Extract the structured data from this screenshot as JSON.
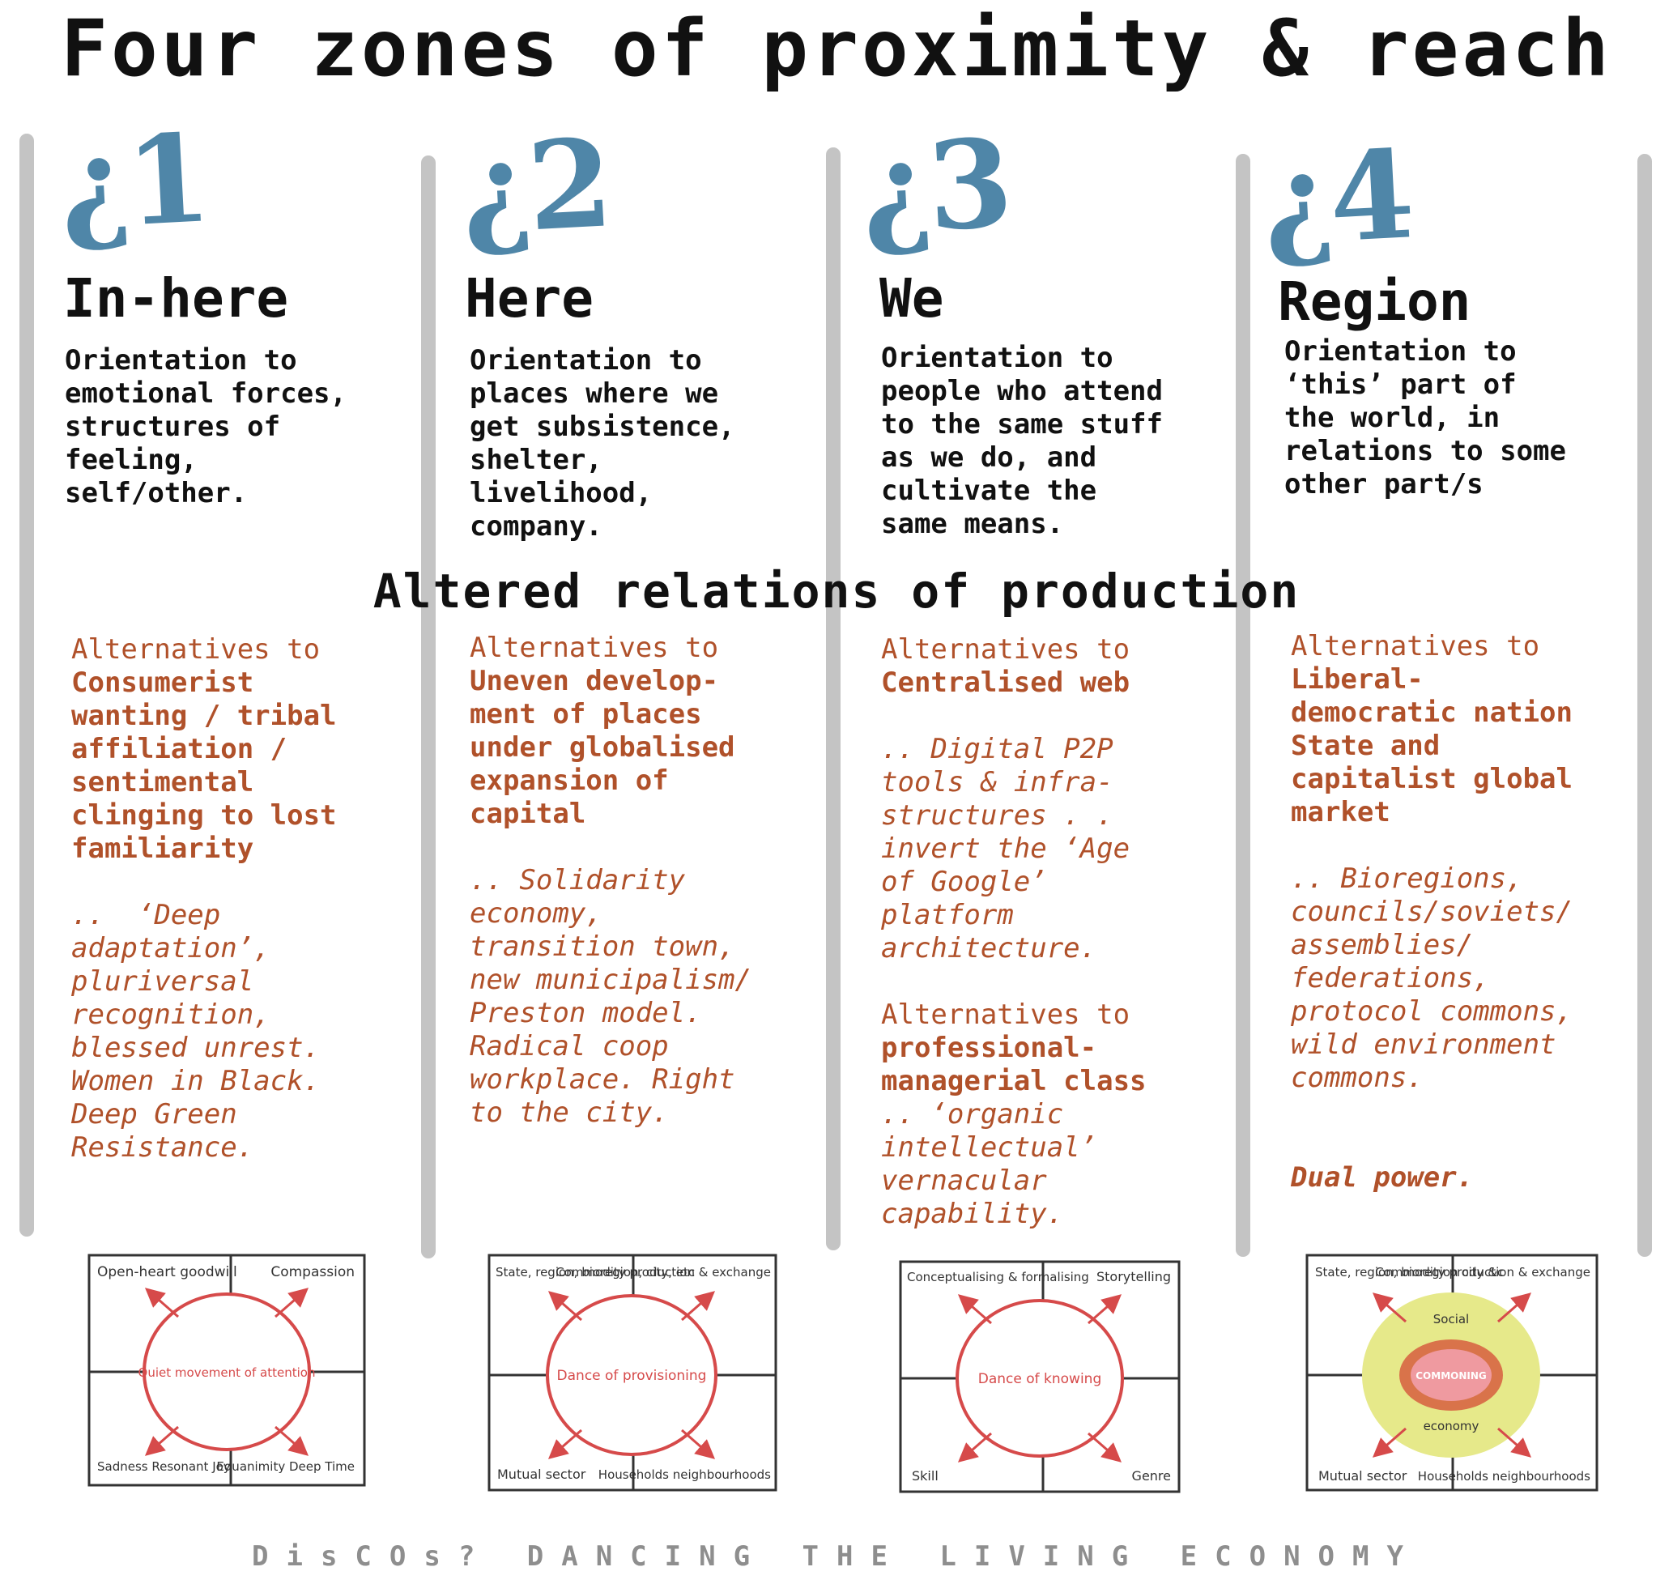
{
  "title": "Four zones of proximity & reach",
  "middle_heading": "Altered relations of production",
  "footer": "DisCOs?  DANCING THE LIVING ECONOMY",
  "colors": {
    "zone_number": "#4f86a8",
    "alternatives_text": "#b0512a",
    "divider": "#c4c4c4",
    "sketch_red": "#d64a4a",
    "commoning_yellow": "#e6e98a"
  },
  "zones": [
    {
      "number": "¿1",
      "name": "In-here",
      "orientation": "Orientation to\nemotional forces,\nstructures of\nfeeling,\nself/other.",
      "alt_label": "Alternatives to",
      "alt_target": "Consumerist\nwanting / tribal\naffiliation /\nsentimental\nclinging to lost\nfamiliarity",
      "alt_examples": "..  ‘Deep\nadaptation’,\npluriversal\nrecognition,\nblessed unrest.\nWomen in Black.\nDeep Green\nResistance.",
      "diagram": {
        "corner_tl": "Open-heart goodwill",
        "corner_tr": "Compassion",
        "corner_bl": "Sadness Resonant Joy",
        "corner_br": "Equanimity Deep Time",
        "center": "Quiet movement of attention"
      }
    },
    {
      "number": "¿2",
      "name": "Here",
      "orientation": "Orientation to\nplaces where we\nget subsistence,\nshelter,\nlivelihood,\ncompany.",
      "alt_label": "Alternatives to",
      "alt_target": "Uneven develop-\nment of places\nunder globalised\nexpansion of\ncapital",
      "alt_examples": ".. Solidarity\neconomy,\ntransition town,\nnew municipalism/\nPreston model.\nRadical coop\nworkplace. Right\nto the city.",
      "diagram": {
        "corner_tl": "State, region, bioregion, city, etc",
        "corner_tr": "Commodity production & exchange",
        "corner_bl": "Mutual sector",
        "corner_br": "Households neighbourhoods",
        "center": "Dance of provisioning"
      }
    },
    {
      "number": "¿3",
      "name": "We",
      "orientation": "Orientation to\npeople who attend\nto the same stuff\nas we do, and\ncultivate the\nsame means.",
      "alt_label": "Alternatives to",
      "alt_target": "Centralised web",
      "alt_examples": ".. Digital P2P\ntools & infra-\nstructures . .\ninvert the ‘Age\nof Google’\nplatform\narchitecture.",
      "alt2_label": "Alternatives to",
      "alt2_target": "professional-\nmanagerial class",
      "alt2_examples": ".. ‘organic\nintellectual’\nvernacular\ncapability.",
      "diagram": {
        "corner_tl": "Conceptualising & formalising",
        "corner_tr": "Storytelling",
        "corner_bl": "Skill",
        "corner_br": "Genre",
        "center": "Dance of knowing"
      }
    },
    {
      "number": "¿4",
      "name": "Region",
      "orientation": "Orientation to\n‘this’ part of\nthe world, in\nrelations to some\nother part/s",
      "alt_label": "Alternatives to",
      "alt_target": "Liberal-\ndemocratic nation\nState and\ncapitalist global\nmarket",
      "alt_examples": ".. Bioregions,\ncouncils/soviets/\nassemblies/\nfederations,\nprotocol commons,\nwild environment\ncommons.",
      "alt_final": "Dual power.",
      "diagram": {
        "corner_tl": "State, region, bioregion city &c",
        "corner_tr": "Commodity production & exchange",
        "corner_bl": "Mutual sector",
        "corner_br": "Households neighbourhoods",
        "ring_top": "Social",
        "center": "COMMONING",
        "ring_bottom": "economy"
      }
    }
  ]
}
